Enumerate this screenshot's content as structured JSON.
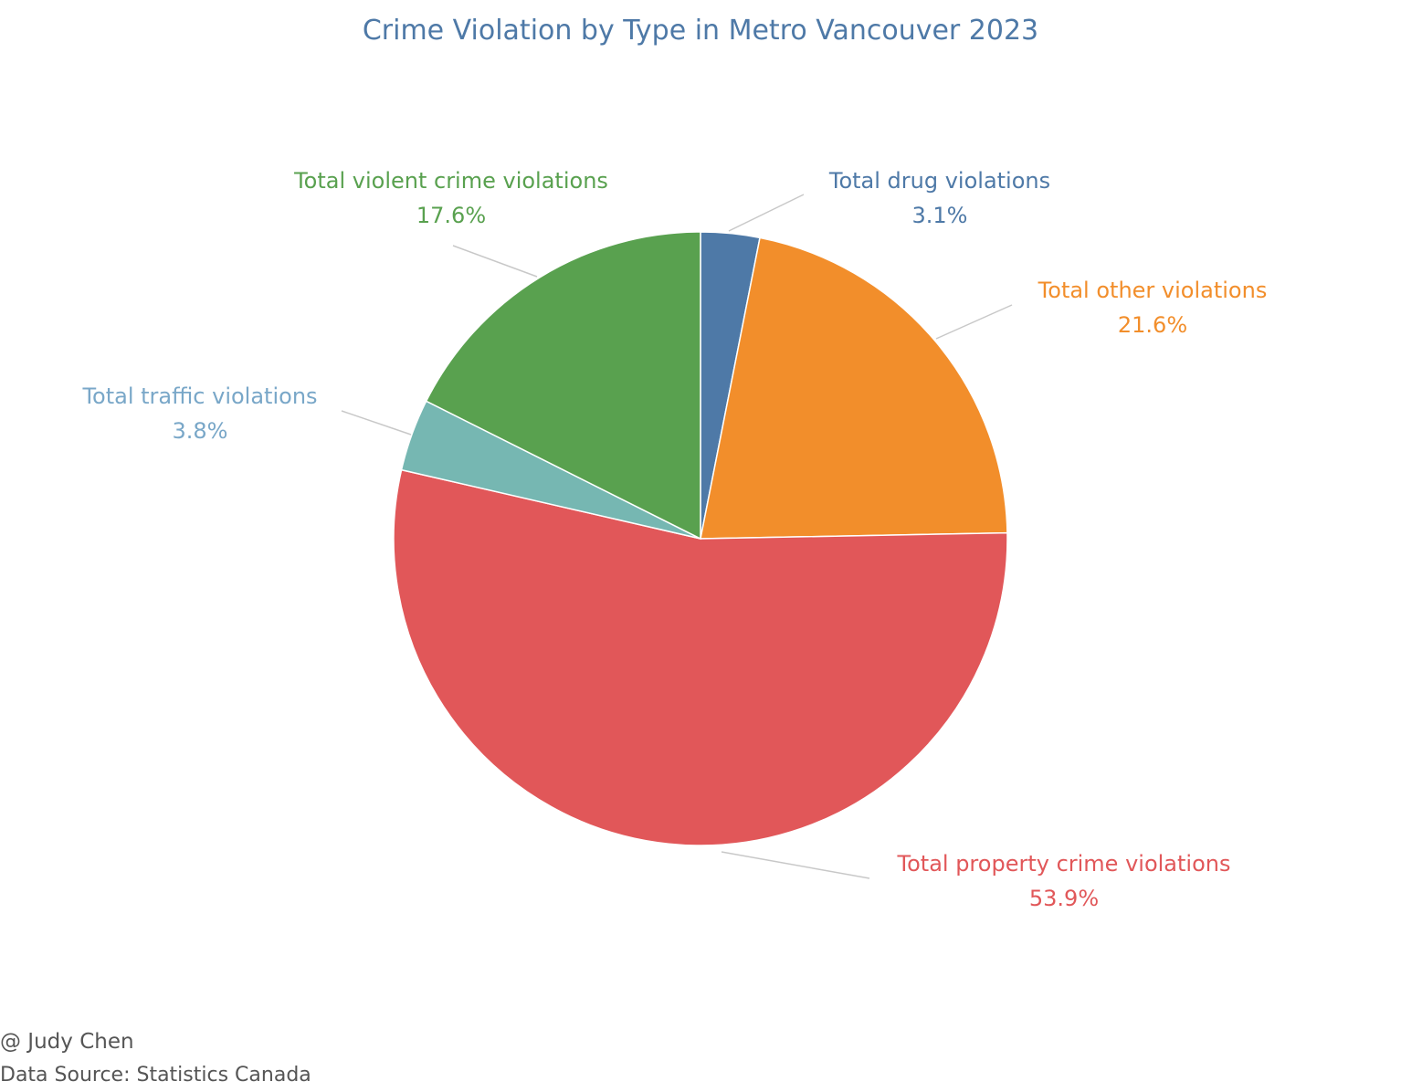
{
  "chart_data": {
    "type": "pie",
    "title": "Crime Violation by Type in Metro Vancouver 2023",
    "slices": [
      {
        "label": "Total drug violations",
        "value": 3.1,
        "value_label": "3.1%",
        "color": "#4e79a7"
      },
      {
        "label": "Total other violations",
        "value": 21.6,
        "value_label": "21.6%",
        "color": "#f28e2b"
      },
      {
        "label": "Total property crime violations",
        "value": 53.9,
        "value_label": "53.9%",
        "color": "#e15759"
      },
      {
        "label": "Total traffic violations",
        "value": 3.8,
        "value_label": "3.8%",
        "color": "#76b7b2"
      },
      {
        "label": "Total violent crime violations",
        "value": 17.6,
        "value_label": "17.6%",
        "color": "#59a14f"
      }
    ],
    "label_colors": [
      "#4e79a7",
      "#f28e2b",
      "#e15759",
      "#79a7c8",
      "#59a14f"
    ],
    "legend": "none"
  },
  "footer": {
    "author": "@ Judy Chen",
    "source": "Data Source: Statistics Canada"
  }
}
